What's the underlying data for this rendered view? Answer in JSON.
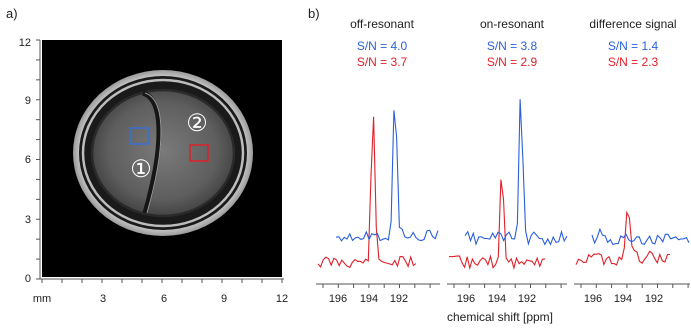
{
  "panel_a": {
    "label": "a)",
    "y_ticks": [
      "12",
      "9",
      "6",
      "3",
      "0"
    ],
    "x_ticks": [
      "mm",
      "3",
      "6",
      "9",
      "12"
    ],
    "markers": [
      {
        "text": "①",
        "box_color": "#3a6fd8"
      },
      {
        "text": "②",
        "box_color": "#e0202a"
      }
    ]
  },
  "panel_b": {
    "label": "b)",
    "xlabel": "chemical shift [ppm]",
    "blue": "#2a5fe0",
    "red": "#e0202a",
    "spectra": [
      {
        "title": "off-resonant",
        "snr_blue": "S/N = 4.0",
        "snr_red": "S/N = 3.7",
        "ticks": [
          "196",
          "194",
          "192"
        ]
      },
      {
        "title": "on-resonant",
        "snr_blue": "S/N = 3.8",
        "snr_red": "S/N = 2.9",
        "ticks": [
          "196",
          "194",
          "192"
        ]
      },
      {
        "title": "difference signal",
        "snr_blue": "S/N = 1.4",
        "snr_red": "S/N = 2.3",
        "ticks": [
          "196",
          "194",
          "192"
        ]
      }
    ]
  }
}
